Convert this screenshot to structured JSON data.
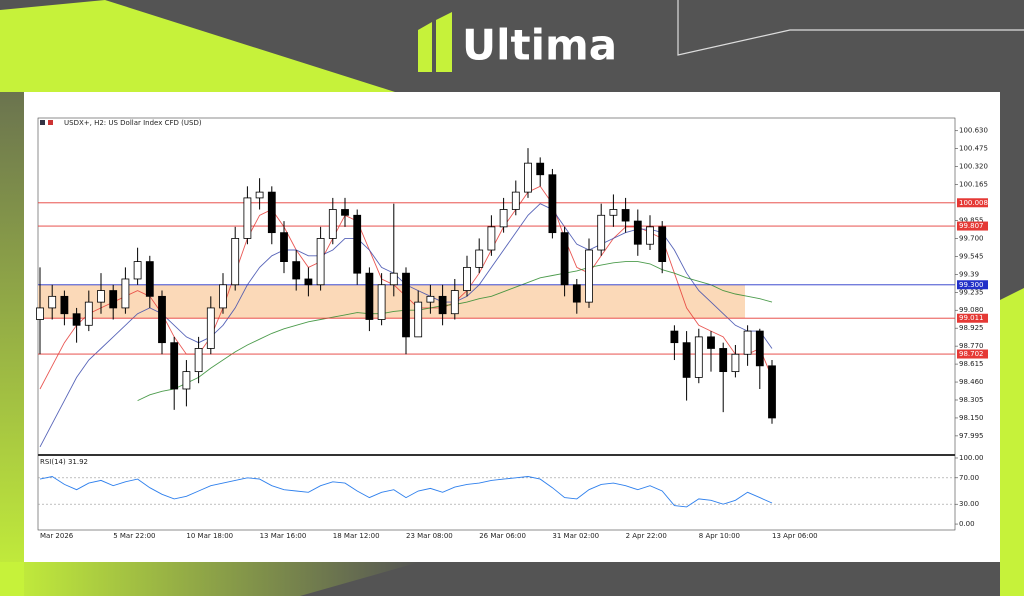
{
  "brand": "Ultima",
  "chart_data": [
    {
      "type": "candlestick",
      "title": "USDX+, H2:  US Dollar Index CFD (USD)",
      "categories": [
        "Mar 2026",
        null,
        null,
        null,
        null,
        null,
        "5 Mar 22:00",
        null,
        null,
        null,
        null,
        null,
        "10 Mar 18:00",
        null,
        null,
        null,
        null,
        null,
        "13 Mar 16:00",
        null,
        null,
        null,
        null,
        null,
        "18 Mar 12:00",
        null,
        null,
        null,
        null,
        null,
        "23 Mar 08:00",
        null,
        null,
        null,
        null,
        null,
        "26 Mar 06:00",
        null,
        null,
        null,
        null,
        null,
        "31 Mar 02:00",
        null,
        null,
        null,
        null,
        null,
        "2 Apr 22:00",
        null,
        null,
        null,
        null,
        null,
        "8 Apr 10:00",
        null,
        null,
        null,
        null,
        null,
        "13 Apr 06:00"
      ],
      "open": [
        99.0,
        99.1,
        99.2,
        99.05,
        98.95,
        99.15,
        99.25,
        99.1,
        99.35,
        99.5,
        99.2,
        98.8,
        98.4,
        98.55,
        98.75,
        99.1,
        99.3,
        99.7,
        100.05,
        100.1,
        99.75,
        99.5,
        99.35,
        99.3,
        99.7,
        99.95,
        99.9,
        99.4,
        99.0,
        99.3,
        99.4,
        98.85,
        99.15,
        99.2,
        99.05,
        99.25,
        99.45,
        99.6,
        99.8,
        99.95,
        100.1,
        100.35,
        100.25,
        99.75,
        99.3,
        99.15,
        99.6,
        99.9,
        99.95,
        99.85,
        99.65,
        99.8,
        98.9,
        98.8,
        98.5,
        98.85,
        98.75,
        98.55,
        98.7,
        98.9,
        98.6
      ],
      "high": [
        99.45,
        99.3,
        99.25,
        99.1,
        99.25,
        99.4,
        99.3,
        99.45,
        99.62,
        99.55,
        99.25,
        98.85,
        98.65,
        98.85,
        99.2,
        99.4,
        99.8,
        100.15,
        100.22,
        100.15,
        99.85,
        99.6,
        99.45,
        99.8,
        100.05,
        100.05,
        99.95,
        99.45,
        99.4,
        100.0,
        99.45,
        99.25,
        99.3,
        99.3,
        99.35,
        99.55,
        99.7,
        99.9,
        100.05,
        100.2,
        100.48,
        100.4,
        100.3,
        99.8,
        99.35,
        99.7,
        100.0,
        100.08,
        100.05,
        99.95,
        99.9,
        99.85,
        98.95,
        98.9,
        98.92,
        98.9,
        98.8,
        98.78,
        98.95,
        98.92,
        98.65
      ],
      "low": [
        98.7,
        99.0,
        98.95,
        98.8,
        98.9,
        99.05,
        99.0,
        99.05,
        99.3,
        99.1,
        98.7,
        98.22,
        98.25,
        98.45,
        98.7,
        99.05,
        99.25,
        99.65,
        99.95,
        99.65,
        99.4,
        99.25,
        99.2,
        99.25,
        99.65,
        99.8,
        99.3,
        98.9,
        98.95,
        99.2,
        98.7,
        98.85,
        99.05,
        98.95,
        99.0,
        99.2,
        99.4,
        99.55,
        99.75,
        99.9,
        100.05,
        100.15,
        99.7,
        99.2,
        99.05,
        99.1,
        99.55,
        99.8,
        99.75,
        99.55,
        99.6,
        99.4,
        98.65,
        98.3,
        98.45,
        98.55,
        98.2,
        98.5,
        98.6,
        98.4,
        98.1
      ],
      "close": [
        99.1,
        99.2,
        99.05,
        98.95,
        99.15,
        99.25,
        99.1,
        99.35,
        99.5,
        99.2,
        98.8,
        98.4,
        98.55,
        98.75,
        99.1,
        99.3,
        99.7,
        100.05,
        100.1,
        99.75,
        99.5,
        99.35,
        99.3,
        99.7,
        99.95,
        99.9,
        99.4,
        99.0,
        99.3,
        99.4,
        98.85,
        99.15,
        99.2,
        99.05,
        99.25,
        99.45,
        99.6,
        99.8,
        99.95,
        100.1,
        100.35,
        100.25,
        99.75,
        99.3,
        99.15,
        99.6,
        99.9,
        99.95,
        99.85,
        99.65,
        99.8,
        99.5,
        98.8,
        98.5,
        98.85,
        98.75,
        98.55,
        98.7,
        98.9,
        98.6,
        98.15
      ],
      "up_color": "#ffffff",
      "down_color": "#000000",
      "series": [
        {
          "color": "#e53935",
          "values": [
            98.4,
            98.6,
            98.8,
            98.95,
            99.05,
            99.1,
            99.15,
            99.2,
            99.25,
            99.2,
            99.05,
            98.85,
            98.7,
            98.7,
            98.85,
            99.1,
            99.4,
            99.7,
            99.9,
            99.95,
            99.8,
            99.6,
            99.45,
            99.5,
            99.7,
            99.9,
            99.85,
            99.6,
            99.35,
            99.3,
            99.2,
            99.1,
            99.1,
            99.1,
            99.15,
            99.25,
            99.4,
            99.6,
            99.8,
            99.95,
            100.1,
            100.15,
            100.0,
            99.7,
            99.45,
            99.4,
            99.55,
            99.7,
            99.8,
            99.8,
            99.75,
            99.7,
            99.4,
            99.1,
            98.95,
            98.9,
            98.85,
            98.7,
            98.7,
            98.75,
            98.5
          ]
        },
        {
          "color": "#3949ab",
          "values": [
            97.9,
            98.1,
            98.3,
            98.5,
            98.65,
            98.75,
            98.85,
            98.95,
            99.05,
            99.1,
            99.05,
            98.95,
            98.85,
            98.8,
            98.85,
            98.95,
            99.1,
            99.3,
            99.45,
            99.55,
            99.6,
            99.6,
            99.55,
            99.55,
            99.6,
            99.7,
            99.7,
            99.6,
            99.45,
            99.4,
            99.3,
            99.25,
            99.2,
            99.15,
            99.15,
            99.2,
            99.3,
            99.45,
            99.6,
            99.75,
            99.9,
            100.0,
            99.95,
            99.8,
            99.65,
            99.6,
            99.65,
            99.7,
            99.75,
            99.78,
            99.78,
            99.75,
            99.6,
            99.4,
            99.25,
            99.15,
            99.05,
            98.95,
            98.9,
            98.9,
            98.75
          ]
        },
        {
          "color": "#2e8b2e",
          "values": [
            null,
            null,
            null,
            null,
            null,
            null,
            null,
            null,
            98.3,
            98.35,
            98.38,
            98.4,
            98.45,
            98.5,
            98.58,
            98.65,
            98.72,
            98.78,
            98.83,
            98.88,
            98.92,
            98.95,
            98.98,
            99.0,
            99.02,
            99.04,
            99.06,
            99.05,
            99.05,
            99.07,
            99.08,
            99.08,
            99.1,
            99.12,
            99.13,
            99.15,
            99.18,
            99.2,
            99.24,
            99.28,
            99.32,
            99.36,
            99.38,
            99.4,
            99.42,
            99.45,
            99.47,
            99.49,
            99.5,
            99.5,
            99.48,
            99.43,
            99.4,
            99.36,
            99.33,
            99.3,
            99.25,
            99.22,
            99.2,
            99.18,
            99.15
          ]
        }
      ],
      "levels": [
        {
          "value": 100.008,
          "label": "100.008",
          "color": "#e53935"
        },
        {
          "value": 99.807,
          "label": "99.807",
          "color": "#e53935"
        },
        {
          "value": 99.3,
          "label": "99.300",
          "color": "#2230c8"
        },
        {
          "value": 99.011,
          "label": "99.011",
          "color": "#e53935"
        },
        {
          "value": 98.702,
          "label": "98.702",
          "color": "#e53935"
        }
      ],
      "zone_color": "#fbd9b8",
      "ylim": [
        97.83,
        100.74
      ],
      "yticks": [
        {
          "value": 100.63,
          "label": "100.630"
        },
        100.475,
        {
          "value": 100.32,
          "label": "100.320"
        },
        100.165,
        99.855,
        {
          "value": 99.7,
          "label": "99.700"
        },
        99.545,
        99.39,
        99.235,
        {
          "value": 99.08,
          "label": "99.080"
        },
        98.925,
        {
          "value": 98.77,
          "label": "98.770"
        },
        98.615,
        {
          "value": 98.46,
          "label": "98.460"
        },
        98.305,
        {
          "value": 98.15,
          "label": "98.150"
        },
        97.995
      ]
    },
    {
      "type": "line",
      "title": "RSI(14) 31.92",
      "color": "#2f80ed",
      "values": [
        68,
        72,
        60,
        52,
        62,
        66,
        58,
        64,
        68,
        55,
        45,
        38,
        42,
        50,
        58,
        62,
        66,
        70,
        68,
        58,
        52,
        50,
        48,
        58,
        64,
        62,
        50,
        40,
        48,
        52,
        40,
        50,
        54,
        48,
        56,
        60,
        62,
        66,
        68,
        70,
        72,
        68,
        55,
        40,
        38,
        52,
        60,
        62,
        58,
        52,
        58,
        50,
        28,
        26,
        38,
        36,
        30,
        36,
        48,
        40,
        31.92
      ],
      "ylim": [
        -9,
        103
      ],
      "yticks": [
        {
          "value": 100,
          "label": "100.00"
        },
        {
          "value": 70,
          "label": "70.00"
        },
        {
          "value": 30,
          "label": "30.00"
        },
        {
          "value": 0,
          "label": "0.00"
        }
      ],
      "levels": [
        70,
        30
      ]
    }
  ]
}
